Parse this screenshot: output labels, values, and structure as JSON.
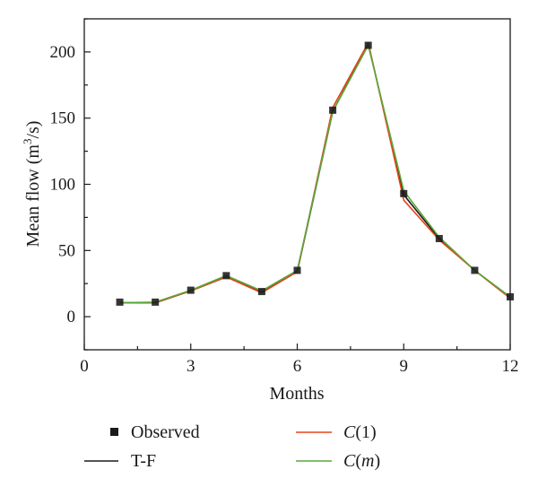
{
  "chart_data": {
    "type": "line",
    "xlabel": "Months",
    "ylabel": "Mean flow (m",
    "ylabel_sup": "3",
    "ylabel_end": "/s)",
    "xlim": [
      0,
      12
    ],
    "ylim": [
      -25,
      225
    ],
    "xticks": [
      0,
      3,
      6,
      9,
      12
    ],
    "yticks": [
      0,
      50,
      100,
      150,
      200
    ],
    "grid": false,
    "legend_position": "bottom",
    "x": [
      1,
      2,
      3,
      4,
      5,
      6,
      7,
      8,
      9,
      10,
      11,
      12
    ],
    "series": [
      {
        "name": "Observed",
        "style": "markers",
        "color": "#1a1a1a",
        "values": [
          11,
          11,
          20,
          31,
          19,
          35,
          156,
          205,
          93,
          59,
          35,
          15
        ]
      },
      {
        "name": "T-F",
        "style": "line",
        "color": "#1a1a1a",
        "values": [
          10.5,
          10.5,
          19.5,
          30,
          18.5,
          34,
          155,
          206,
          92,
          59,
          35,
          14
        ]
      },
      {
        "name": "C",
        "name_arg": "(1)",
        "style": "line",
        "color": "#e8431a",
        "values": [
          10.5,
          10.5,
          19.5,
          30,
          18,
          34,
          158,
          207,
          88,
          58,
          35,
          14
        ]
      },
      {
        "name": "C",
        "name_arg": "(",
        "name_arg_var": "m",
        "name_arg_end": ")",
        "style": "line",
        "color": "#5aa83a",
        "values": [
          10.5,
          11,
          20,
          31,
          19.5,
          35,
          155,
          205,
          95,
          60,
          35,
          15
        ]
      }
    ]
  }
}
